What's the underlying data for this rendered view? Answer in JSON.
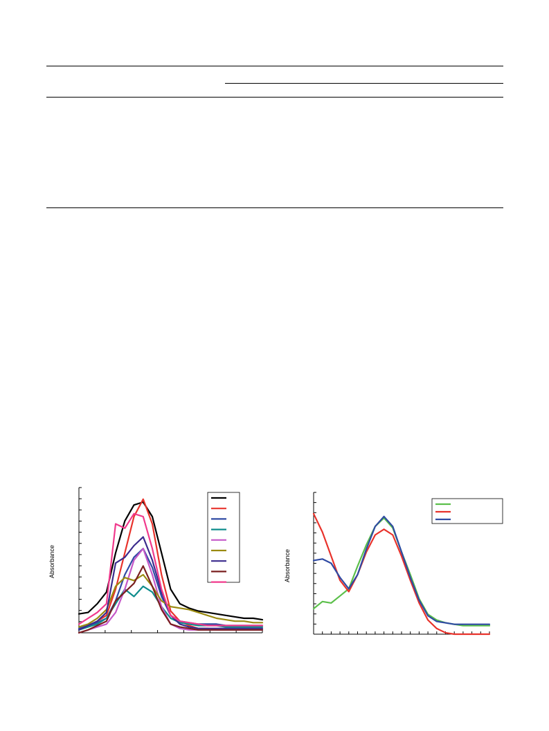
{
  "table": {
    "rules": 4
  },
  "figure_left": {
    "ylabel": "Absorbance",
    "legend_colors": [
      "#000000",
      "#e8322b",
      "#2f4aa3",
      "#0e8c8c",
      "#c558c8",
      "#9a8a10",
      "#3a2a8c",
      "#7a1f1f",
      "#f0398c"
    ]
  },
  "figure_right": {
    "ylabel": "Absorbance",
    "legend_colors": [
      "#5bbf4a",
      "#e8322b",
      "#2f4aa3"
    ]
  },
  "chart_data": [
    {
      "type": "line",
      "ylabel": "Absorbance",
      "x": [
        0,
        1,
        2,
        3,
        4,
        5,
        6,
        7,
        8,
        9,
        10,
        11,
        12,
        13,
        14,
        15,
        16,
        17,
        18,
        19,
        20
      ],
      "series": [
        {
          "color": "#000000",
          "values": [
            0.13,
            0.14,
            0.2,
            0.28,
            0.55,
            0.77,
            0.88,
            0.9,
            0.8,
            0.55,
            0.3,
            0.2,
            0.17,
            0.15,
            0.14,
            0.13,
            0.12,
            0.11,
            0.1,
            0.1,
            0.09
          ]
        },
        {
          "color": "#e8322b",
          "values": [
            0.02,
            0.05,
            0.08,
            0.12,
            0.3,
            0.55,
            0.8,
            0.92,
            0.75,
            0.4,
            0.15,
            0.08,
            0.05,
            0.03,
            0.03,
            0.02,
            0.02,
            0.02,
            0.02,
            0.02,
            0.02
          ]
        },
        {
          "color": "#2f4aa3",
          "values": [
            0.03,
            0.05,
            0.07,
            0.1,
            0.22,
            0.4,
            0.52,
            0.58,
            0.45,
            0.25,
            0.12,
            0.08,
            0.07,
            0.06,
            0.06,
            0.06,
            0.05,
            0.05,
            0.05,
            0.05,
            0.05
          ]
        },
        {
          "color": "#0e8c8c",
          "values": [
            0.02,
            0.04,
            0.06,
            0.1,
            0.2,
            0.3,
            0.25,
            0.32,
            0.28,
            0.18,
            0.1,
            0.07,
            0.06,
            0.05,
            0.05,
            0.05,
            0.04,
            0.04,
            0.04,
            0.04,
            0.04
          ]
        },
        {
          "color": "#c558c8",
          "values": [
            0.0,
            0.02,
            0.04,
            0.06,
            0.14,
            0.3,
            0.5,
            0.58,
            0.4,
            0.18,
            0.06,
            0.03,
            0.02,
            0.02,
            0.02,
            0.02,
            0.02,
            0.02,
            0.02,
            0.02,
            0.02
          ]
        },
        {
          "color": "#9a8a10",
          "values": [
            0.04,
            0.06,
            0.1,
            0.16,
            0.32,
            0.38,
            0.36,
            0.4,
            0.32,
            0.22,
            0.18,
            0.17,
            0.16,
            0.14,
            0.12,
            0.1,
            0.09,
            0.08,
            0.08,
            0.07,
            0.07
          ]
        },
        {
          "color": "#3a2a8c",
          "values": [
            0.02,
            0.05,
            0.08,
            0.14,
            0.48,
            0.52,
            0.6,
            0.66,
            0.5,
            0.28,
            0.12,
            0.06,
            0.04,
            0.03,
            0.03,
            0.03,
            0.03,
            0.03,
            0.03,
            0.03,
            0.03
          ]
        },
        {
          "color": "#7a1f1f",
          "values": [
            0.0,
            0.02,
            0.05,
            0.08,
            0.22,
            0.28,
            0.34,
            0.46,
            0.32,
            0.16,
            0.06,
            0.04,
            0.03,
            0.02,
            0.02,
            0.02,
            0.02,
            0.02,
            0.02,
            0.02,
            0.02
          ]
        },
        {
          "color": "#f0398c",
          "values": [
            0.06,
            0.1,
            0.14,
            0.2,
            0.75,
            0.72,
            0.82,
            0.8,
            0.58,
            0.3,
            0.12,
            0.08,
            0.07,
            0.06,
            0.05,
            0.05,
            0.05,
            0.05,
            0.05,
            0.05,
            0.05
          ]
        }
      ]
    },
    {
      "type": "line",
      "ylabel": "Absorbance",
      "x": [
        0,
        1,
        2,
        3,
        4,
        5,
        6,
        7,
        8,
        9,
        10,
        11,
        12,
        13,
        14,
        15,
        16,
        17,
        18,
        19,
        20
      ],
      "series": [
        {
          "color": "#5bbf4a",
          "values": [
            0.18,
            0.23,
            0.22,
            0.27,
            0.32,
            0.48,
            0.63,
            0.76,
            0.82,
            0.75,
            0.58,
            0.42,
            0.25,
            0.14,
            0.1,
            0.08,
            0.07,
            0.06,
            0.06,
            0.06,
            0.06
          ]
        },
        {
          "color": "#e8322b",
          "values": [
            0.85,
            0.72,
            0.55,
            0.38,
            0.3,
            0.42,
            0.58,
            0.7,
            0.74,
            0.7,
            0.55,
            0.38,
            0.22,
            0.1,
            0.04,
            0.01,
            0.0,
            0.0,
            0.0,
            0.0,
            0.0
          ]
        },
        {
          "color": "#2f4aa3",
          "values": [
            0.52,
            0.53,
            0.5,
            0.4,
            0.32,
            0.42,
            0.6,
            0.76,
            0.83,
            0.76,
            0.58,
            0.4,
            0.24,
            0.13,
            0.09,
            0.08,
            0.07,
            0.07,
            0.07,
            0.07,
            0.07
          ]
        }
      ]
    }
  ]
}
